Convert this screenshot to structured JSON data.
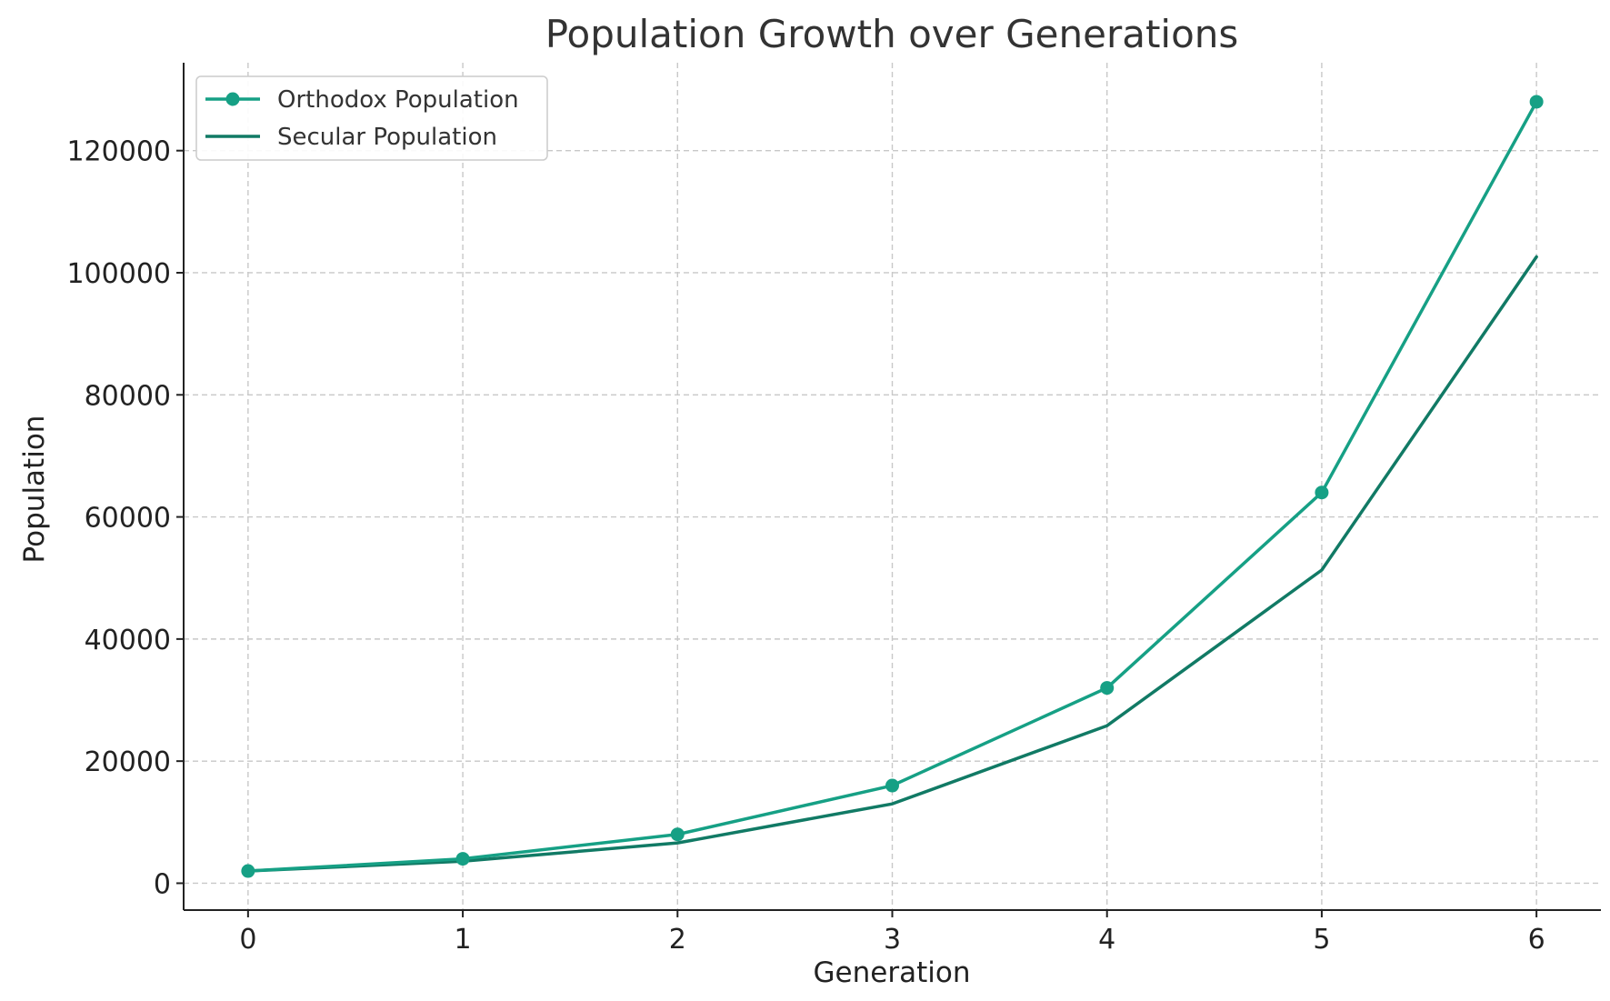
{
  "chart_data": {
    "type": "line",
    "title": "Population Growth over Generations",
    "xlabel": "Generation",
    "ylabel": "Population",
    "x": [
      0,
      1,
      2,
      3,
      4,
      5,
      6
    ],
    "xlim": [
      -0.3,
      6.3
    ],
    "ylim": [
      -4400,
      134400
    ],
    "xticks": [
      0,
      1,
      2,
      3,
      4,
      5,
      6
    ],
    "yticks": [
      0,
      20000,
      40000,
      60000,
      80000,
      100000,
      120000
    ],
    "grid": true,
    "legend_position": "top-left",
    "series": [
      {
        "name": "Orthodox Population",
        "color": "#16a085",
        "marker": "circle",
        "values": [
          2000,
          4000,
          8000,
          16000,
          32000,
          64000,
          128000
        ]
      },
      {
        "name": "Secular Population",
        "color": "#117a65",
        "marker": "none",
        "values": [
          2000,
          3600,
          6600,
          13000,
          25800,
          51300,
          102600
        ]
      }
    ]
  }
}
